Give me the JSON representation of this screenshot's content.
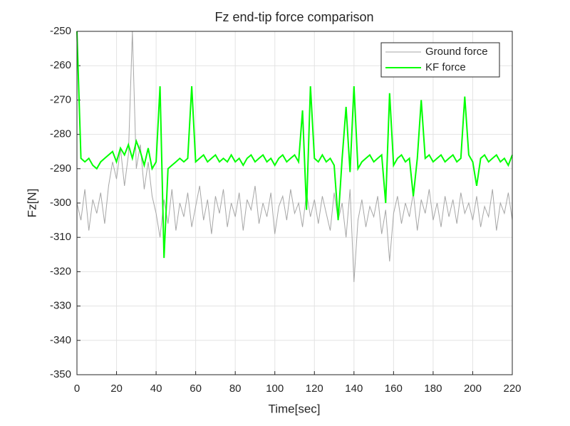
{
  "chart_data": {
    "type": "line",
    "title": "Fz end-tip force comparison",
    "x_label": "Time[sec]",
    "y_label": "Fz[N]",
    "x": [
      0,
      2,
      4,
      6,
      8,
      10,
      12,
      14,
      16,
      18,
      20,
      22,
      24,
      26,
      28,
      30,
      32,
      34,
      36,
      38,
      40,
      42,
      44,
      46,
      48,
      50,
      52,
      54,
      56,
      58,
      60,
      62,
      64,
      66,
      68,
      70,
      72,
      74,
      76,
      78,
      80,
      82,
      84,
      86,
      88,
      90,
      92,
      94,
      96,
      98,
      100,
      102,
      104,
      106,
      108,
      110,
      112,
      114,
      116,
      118,
      120,
      122,
      124,
      126,
      128,
      130,
      132,
      134,
      136,
      138,
      140,
      142,
      144,
      146,
      148,
      150,
      152,
      154,
      156,
      158,
      160,
      162,
      164,
      166,
      168,
      170,
      172,
      174,
      176,
      178,
      180,
      182,
      184,
      186,
      188,
      190,
      192,
      194,
      196,
      198,
      200,
      202,
      204,
      206,
      208,
      210,
      212,
      214,
      216,
      218,
      220
    ],
    "series": [
      {
        "name": "Ground force",
        "color": "#a6a6a6",
        "values": [
          -300,
          -305,
          -296,
          -308,
          -299,
          -303,
          -297,
          -306,
          -295,
          -288,
          -293,
          -284,
          -295,
          -286,
          -250,
          -290,
          -283,
          -296,
          -288,
          -298,
          -303,
          -310,
          -299,
          -306,
          -296,
          -308,
          -300,
          -304,
          -297,
          -307,
          -301,
          -295,
          -305,
          -299,
          -309,
          -298,
          -303,
          -296,
          -307,
          -300,
          -304,
          -297,
          -308,
          -299,
          -302,
          -295,
          -306,
          -300,
          -304,
          -297,
          -309,
          -301,
          -298,
          -305,
          -296,
          -303,
          -300,
          -307,
          -297,
          -304,
          -299,
          -306,
          -298,
          -303,
          -308,
          -297,
          -305,
          -300,
          -310,
          -296,
          -323,
          -305,
          -299,
          -307,
          -301,
          -304,
          -298,
          -309,
          -302,
          -317,
          -303,
          -298,
          -306,
          -300,
          -304,
          -297,
          -308,
          -299,
          -303,
          -296,
          -305,
          -300,
          -307,
          -298,
          -304,
          -299,
          -306,
          -297,
          -303,
          -300,
          -305,
          -298,
          -307,
          -301,
          -304,
          -296,
          -308,
          -300,
          -303,
          -297,
          -305
        ]
      },
      {
        "name": "KF force",
        "color": "#00ff00",
        "values": [
          -250,
          -287,
          -288,
          -287,
          -289,
          -290,
          -288,
          -287,
          -286,
          -285,
          -288,
          -284,
          -286,
          -283,
          -287,
          -282,
          -285,
          -289,
          -284,
          -290,
          -288,
          -266,
          -316,
          -290,
          -289,
          -288,
          -287,
          -288,
          -287,
          -266,
          -288,
          -287,
          -286,
          -288,
          -287,
          -286,
          -288,
          -287,
          -288,
          -286,
          -288,
          -287,
          -289,
          -287,
          -286,
          -288,
          -287,
          -286,
          -288,
          -287,
          -289,
          -287,
          -286,
          -288,
          -287,
          -286,
          -288,
          -273,
          -302,
          -266,
          -287,
          -288,
          -286,
          -288,
          -287,
          -289,
          -305,
          -287,
          -272,
          -291,
          -266,
          -290,
          -288,
          -287,
          -286,
          -288,
          -287,
          -286,
          -300,
          -268,
          -289,
          -287,
          -286,
          -288,
          -287,
          -298,
          -287,
          -270,
          -287,
          -286,
          -288,
          -287,
          -286,
          -288,
          -287,
          -286,
          -288,
          -287,
          -269,
          -286,
          -288,
          -295,
          -287,
          -286,
          -288,
          -287,
          -286,
          -288,
          -287,
          -289,
          -286
        ]
      }
    ],
    "xlim": [
      0,
      220
    ],
    "xticks": [
      0,
      20,
      40,
      60,
      80,
      100,
      120,
      140,
      160,
      180,
      200,
      220
    ],
    "ylim": [
      -350,
      -250
    ],
    "yticks": [
      -350,
      -340,
      -330,
      -320,
      -310,
      -300,
      -290,
      -280,
      -270,
      -260,
      -250
    ],
    "grid": true,
    "legend": "northeast"
  }
}
